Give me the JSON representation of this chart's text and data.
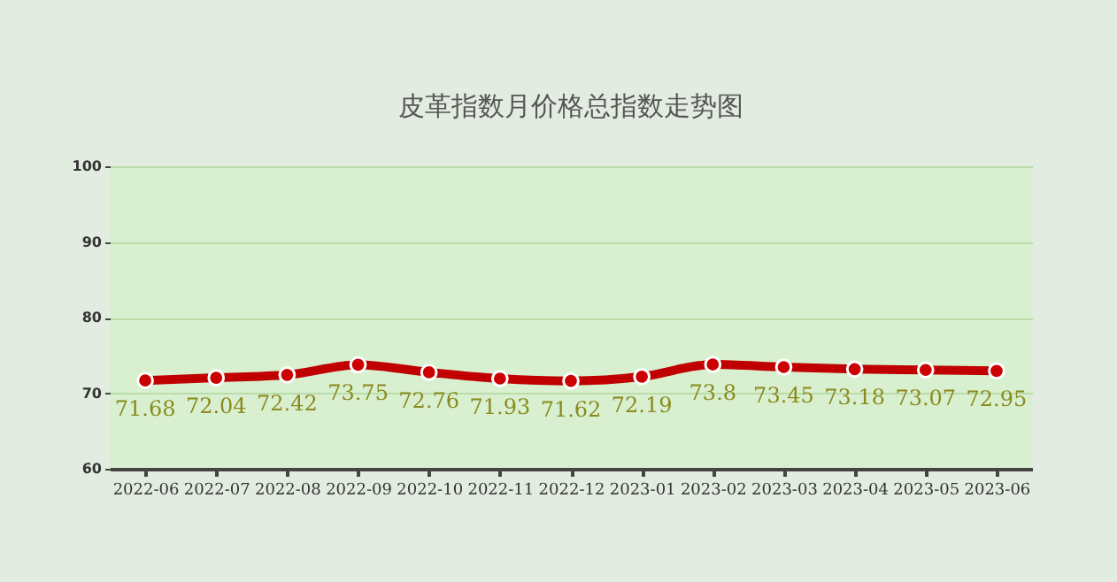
{
  "chart_data": {
    "type": "line",
    "title": "皮革指数月价格总指数走势图",
    "categories": [
      "2022-06",
      "2022-07",
      "2022-08",
      "2022-09",
      "2022-10",
      "2022-11",
      "2022-12",
      "2023-01",
      "2023-02",
      "2023-03",
      "2023-04",
      "2023-05",
      "2023-06"
    ],
    "series": [
      {
        "color": "#c00000",
        "values": [
          71.68,
          72.04,
          72.42,
          73.75,
          72.76,
          71.93,
          71.62,
          72.19,
          73.8,
          73.45,
          73.18,
          73.07,
          72.95
        ]
      }
    ],
    "ylim": [
      60,
      100
    ],
    "yticks": [
      60,
      70,
      80,
      90,
      100
    ],
    "grid": "y",
    "marker": "circle",
    "data_labels": true
  }
}
